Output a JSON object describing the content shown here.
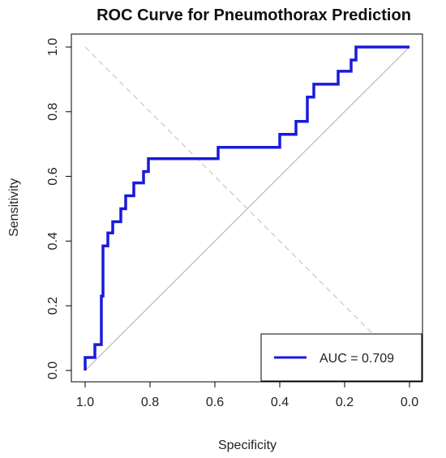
{
  "chart_data": {
    "type": "line",
    "title": "ROC Curve for Pneumothorax Prediction",
    "xlabel": "Specificity",
    "ylabel": "Sensitivity",
    "xlim": [
      1.0,
      0.0
    ],
    "ylim": [
      0.0,
      1.0
    ],
    "x_reversed": true,
    "xticks": [
      1.0,
      0.8,
      0.6,
      0.4,
      0.2,
      0.0
    ],
    "xtick_labels": [
      "1.0",
      "0.8",
      "0.6",
      "0.4",
      "0.2",
      "0.0"
    ],
    "yticks": [
      0.0,
      0.2,
      0.4,
      0.6,
      0.8,
      1.0
    ],
    "ytick_labels": [
      "0.0",
      "0.2",
      "0.4",
      "0.6",
      "0.8",
      "1.0"
    ],
    "grid": false,
    "legend_position": "bottom-right",
    "legend": [
      {
        "label": "AUC = 0.709",
        "color": "#1a1adb"
      }
    ],
    "series": [
      {
        "color": "#1a1adb",
        "x": [
          1.0,
          1.0,
          0.98,
          0.98,
          0.97,
          0.97,
          0.95,
          0.95,
          0.945,
          0.945,
          0.93,
          0.93,
          0.915,
          0.915,
          0.89,
          0.89,
          0.875,
          0.875,
          0.85,
          0.85,
          0.82,
          0.82,
          0.805,
          0.805,
          0.59,
          0.59,
          0.4,
          0.4,
          0.35,
          0.35,
          0.315,
          0.315,
          0.295,
          0.295,
          0.22,
          0.22,
          0.18,
          0.18,
          0.165,
          0.165,
          0.0
        ],
        "y": [
          0.0,
          0.04,
          0.04,
          0.04,
          0.04,
          0.08,
          0.08,
          0.23,
          0.23,
          0.385,
          0.385,
          0.425,
          0.425,
          0.46,
          0.46,
          0.5,
          0.5,
          0.54,
          0.54,
          0.58,
          0.58,
          0.615,
          0.615,
          0.655,
          0.655,
          0.69,
          0.69,
          0.73,
          0.73,
          0.77,
          0.77,
          0.845,
          0.845,
          0.885,
          0.885,
          0.925,
          0.925,
          0.96,
          0.96,
          1.0,
          1.0
        ]
      }
    ],
    "reference_lines": [
      {
        "style": "solid",
        "color": "#b8b8b8",
        "from": [
          1.0,
          0.0
        ],
        "to": [
          0.0,
          1.0
        ]
      },
      {
        "style": "dashed",
        "color": "#c8c8c8",
        "from": [
          1.0,
          1.0
        ],
        "to": [
          0.0,
          0.0
        ]
      }
    ]
  }
}
